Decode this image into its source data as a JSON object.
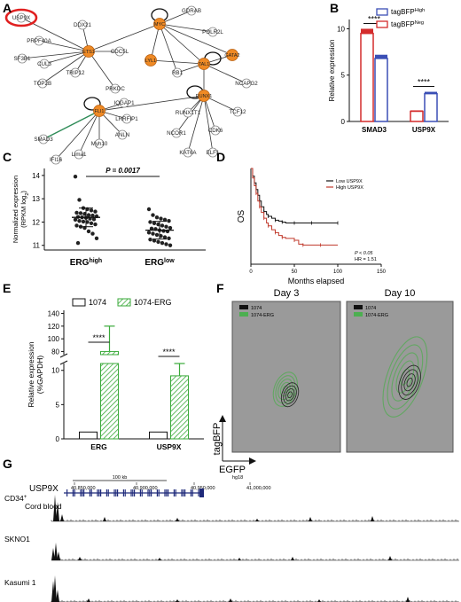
{
  "panels": {
    "a": "A",
    "b": "B",
    "c": "C",
    "d": "D",
    "e": "E",
    "f": "F",
    "g": "G"
  },
  "network": {
    "hubs": [
      "MYC",
      "RUNX1",
      "LYL1",
      "TAL1",
      "GATA2",
      "ETS1",
      "FLI1"
    ],
    "highlight": "USP9X",
    "nodes": [
      "USP9X",
      "DDX21",
      "CDC5L",
      "GDRAB",
      "POLR2L",
      "PRPF40A",
      "SF3B1",
      "CUL3",
      "TRIP12",
      "TOP2B",
      "PRKDC",
      "RB1",
      "NCAPG2",
      "IQGAP1",
      "LRRFIP1",
      "RUNX1T1",
      "TCF12",
      "NCOR1",
      "CDK6",
      "KAT6A",
      "ELF1",
      "SMAD3",
      "ANLN",
      "Lima1",
      "Myh10",
      "IFI16"
    ]
  },
  "panel_b": {
    "ylabel": "Relative expression",
    "legend": [
      {
        "label": "tagBFP",
        "sup": "High",
        "color": "#3b4fb5"
      },
      {
        "label": "tagBFP",
        "sup": "Neg",
        "color": "#d42b2b"
      }
    ],
    "significance": "****"
  },
  "panel_c": {
    "ylabel1": "Normalized expression",
    "ylabel2": "(RPKM log",
    "ylabel2sub": "2",
    "ylabel2end": ")",
    "pvalue": "P = 0.0017",
    "xlabels": [
      {
        "base": "ERG",
        "sup": "high"
      },
      {
        "base": "ERG",
        "sup": "low"
      }
    ]
  },
  "panel_d": {
    "ylabel": "OS",
    "xlabel": "Months elapsed",
    "legend": [
      "Low USP9X",
      "High USP9X"
    ],
    "annot1": "P < 0.05",
    "annot2": "HR = 1.51"
  },
  "panel_e": {
    "ylabel1": "Relative expression",
    "ylabel2": "(%GAPDH)",
    "legend": [
      "1074",
      "1074-ERG"
    ],
    "significance": "****"
  },
  "panel_f": {
    "titles": [
      "Day 3",
      "Day 10"
    ],
    "legend": [
      "1074",
      "1074-ERG"
    ],
    "ylabel": "tagBFP",
    "xlabel": "EGFP"
  },
  "panel_g": {
    "gene": "USP9X",
    "scale": "100 kb",
    "genome": "hg18",
    "coords": [
      "40,850,000",
      "40,900,000",
      "40,950,000",
      "41,000,000"
    ],
    "tracks": [
      {
        "label": "CD34",
        "sup": "+",
        "label2": "Cord blood"
      },
      {
        "label": "SKNO1"
      },
      {
        "label": "Kasumi 1"
      }
    ]
  },
  "chart_data": [
    {
      "type": "bar",
      "panel": "B",
      "categories": [
        "SMAD3",
        "USP9X"
      ],
      "series": [
        {
          "name": "tagBFP High",
          "values": [
            6.8,
            3.0
          ],
          "errors": [
            0.4,
            0.2
          ]
        },
        {
          "name": "tagBFP Neg",
          "values": [
            9.5,
            1.1
          ],
          "errors": [
            0.5,
            0.1
          ]
        }
      ],
      "ylabel": "Relative expression",
      "yticks": [
        0,
        5,
        10
      ],
      "ylim": [
        0,
        11
      ]
    },
    {
      "type": "scatter",
      "panel": "C",
      "categories": [
        "ERG high",
        "ERG low"
      ],
      "ylabel": "Normalized expression (RPKM log2)",
      "yticks": [
        11,
        12,
        13,
        14
      ],
      "ylim": [
        10.8,
        14.3
      ],
      "means": [
        12.2,
        11.65
      ],
      "sd": [
        0.4,
        0.38
      ],
      "points": [
        [
          13.95,
          12.95,
          12.6,
          12.55,
          12.5,
          12.45,
          12.4,
          12.38,
          12.35,
          12.3,
          12.28,
          12.25,
          12.22,
          12.2,
          12.18,
          12.15,
          12.12,
          12.1,
          12.05,
          12.02,
          12.0,
          11.95,
          11.9,
          11.85,
          11.8,
          11.75,
          11.6,
          11.5,
          11.3,
          11.1
        ],
        [
          12.55,
          12.3,
          12.2,
          12.15,
          12.1,
          12.05,
          12.0,
          11.95,
          11.9,
          11.85,
          11.8,
          11.75,
          11.72,
          11.7,
          11.65,
          11.62,
          11.6,
          11.55,
          11.5,
          11.45,
          11.4,
          11.35,
          11.3,
          11.25,
          11.2,
          11.15,
          11.1,
          11.05,
          11.0
        ]
      ]
    },
    {
      "type": "line",
      "panel": "D",
      "xlabel": "Months elapsed",
      "ylabel": "OS",
      "xticks": [
        0,
        50,
        100,
        150
      ],
      "xlim": [
        0,
        150
      ],
      "ylim": [
        0,
        1
      ],
      "series": [
        {
          "name": "Low USP9X",
          "x": [
            0,
            2,
            4,
            6,
            8,
            10,
            12,
            15,
            18,
            20,
            24,
            28,
            32,
            36,
            40,
            50,
            60,
            70,
            80,
            100
          ],
          "y": [
            1,
            0.92,
            0.85,
            0.78,
            0.72,
            0.66,
            0.6,
            0.55,
            0.52,
            0.5,
            0.48,
            0.46,
            0.45,
            0.44,
            0.43,
            0.43,
            0.43,
            0.43,
            0.43,
            0.43
          ]
        },
        {
          "name": "High USP9X",
          "x": [
            0,
            2,
            4,
            6,
            8,
            10,
            12,
            15,
            18,
            20,
            24,
            28,
            32,
            36,
            40,
            50,
            55,
            60,
            70,
            80,
            100
          ],
          "y": [
            1,
            0.9,
            0.82,
            0.74,
            0.66,
            0.6,
            0.54,
            0.48,
            0.43,
            0.4,
            0.36,
            0.33,
            0.3,
            0.28,
            0.27,
            0.25,
            0.21,
            0.2,
            0.2,
            0.2,
            0.2
          ]
        }
      ]
    },
    {
      "type": "bar",
      "panel": "E",
      "categories": [
        "ERG",
        "USP9X"
      ],
      "series": [
        {
          "name": "1074",
          "values": [
            1,
            1
          ],
          "errors": [
            0,
            0
          ]
        },
        {
          "name": "1074-ERG",
          "values": [
            80,
            9.2
          ],
          "errors": [
            40,
            1.8
          ]
        }
      ],
      "ylabel": "Relative expression (%GAPDH)",
      "yticks_lower": [
        0,
        5,
        10
      ],
      "yticks_upper": [
        80,
        100,
        120,
        140
      ],
      "axis_break": true
    }
  ]
}
